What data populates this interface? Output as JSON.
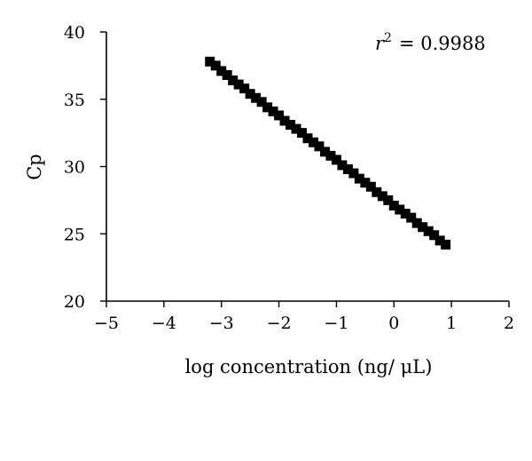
{
  "chart_data": {
    "type": "scatter",
    "title": "",
    "xlabel": "log concentration (ng/ μL)",
    "ylabel": "Cp",
    "xlim": [
      -5,
      2
    ],
    "ylim": [
      20,
      40
    ],
    "x_ticks": [
      "−5",
      "−4",
      "−3",
      "−2",
      "−1",
      "0",
      "1",
      "2"
    ],
    "x_tick_values": [
      -5,
      -4,
      -3,
      -2,
      -1,
      0,
      1,
      2
    ],
    "y_ticks": [
      "20",
      "25",
      "30",
      "35",
      "40"
    ],
    "y_tick_values": [
      20,
      25,
      30,
      35,
      40
    ],
    "grid": false,
    "annotation": {
      "r_symbol": "r",
      "exponent": "2",
      "equals": "= 0.9988"
    },
    "series": [
      {
        "marker": "square",
        "color": "#000000",
        "x": [
          -3.2,
          -3.1,
          -3.0,
          -2.9,
          -2.8,
          -2.7,
          -2.6,
          -2.5,
          -2.4,
          -2.3,
          -2.2,
          -2.1,
          -2.0,
          -1.9,
          -1.8,
          -1.7,
          -1.6,
          -1.5,
          -1.4,
          -1.3,
          -1.2,
          -1.1,
          -1.0,
          -0.9,
          -0.8,
          -0.7,
          -0.6,
          -0.5,
          -0.4,
          -0.3,
          -0.2,
          -0.1,
          0.0,
          0.1,
          0.2,
          0.3,
          0.4,
          0.5,
          0.6,
          0.7,
          0.8,
          0.9
        ],
        "y": [
          37.8,
          37.5,
          37.1,
          36.8,
          36.4,
          36.1,
          35.8,
          35.4,
          35.1,
          34.8,
          34.4,
          34.1,
          33.8,
          33.4,
          33.1,
          32.8,
          32.5,
          32.1,
          31.8,
          31.5,
          31.1,
          30.8,
          30.5,
          30.1,
          29.8,
          29.5,
          29.1,
          28.8,
          28.5,
          28.1,
          27.8,
          27.5,
          27.1,
          26.8,
          26.5,
          26.2,
          25.8,
          25.5,
          25.2,
          24.9,
          24.5,
          24.2
        ]
      }
    ]
  }
}
